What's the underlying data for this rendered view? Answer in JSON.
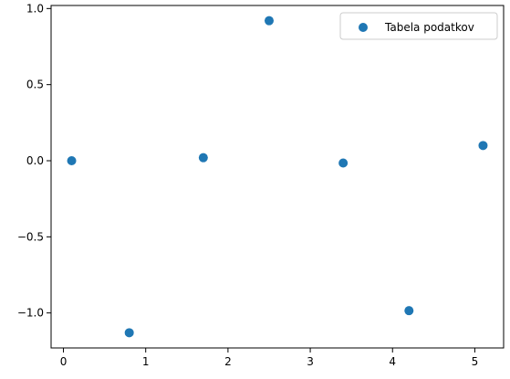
{
  "chart_data": {
    "type": "scatter",
    "title": "",
    "xlabel": "",
    "ylabel": "",
    "xlim": [
      -0.15,
      5.35
    ],
    "ylim": [
      -1.23,
      1.02
    ],
    "x_ticks": [
      0,
      1,
      2,
      3,
      4,
      5
    ],
    "x_tick_labels": [
      "0",
      "1",
      "2",
      "3",
      "4",
      "5"
    ],
    "y_ticks": [
      -1.0,
      -0.5,
      0.0,
      0.5,
      1.0
    ],
    "y_tick_labels": [
      "−1.0",
      "−0.5",
      "0.0",
      "0.5",
      "1.0"
    ],
    "grid": false,
    "legend": {
      "placement": "top-right",
      "entries": [
        "Tabela podatkov"
      ]
    },
    "series": [
      {
        "name": "Tabela podatkov",
        "color": "#1f77b4",
        "x": [
          0.1,
          0.8,
          1.7,
          2.5,
          3.4,
          4.2,
          5.1
        ],
        "y": [
          0.0,
          -1.13,
          0.02,
          0.92,
          -0.015,
          -0.985,
          0.1
        ]
      }
    ]
  }
}
